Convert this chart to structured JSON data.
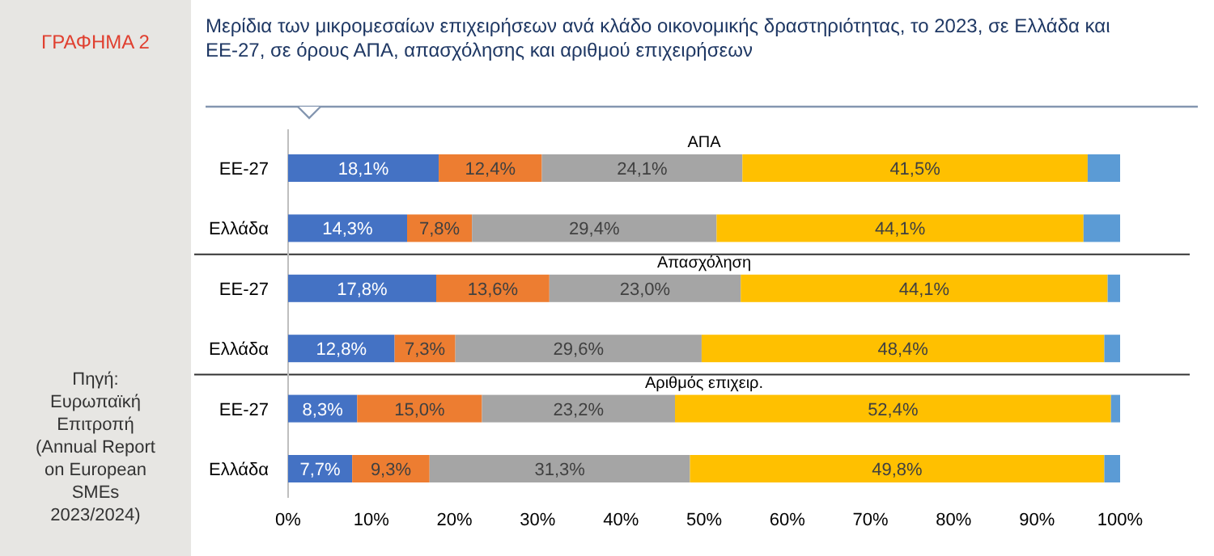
{
  "chart_data": {
    "type": "bar",
    "orientation": "horizontal",
    "stacked": true,
    "title": "Μερίδια των μικρομεσαίων επιχειρήσεων ανά κλάδο οικονομικής δραστηριότητας, το 2023, σε Ελλάδα και ΕΕ-27, σε όρους ΑΠΑ, απασχόλησης και αριθμού επιχειρήσεων",
    "annotations": [
      "ΑΠΑ",
      "Απασχόληση",
      "Αριθμός επιχειρ.",
      "ΓΡΑΦΗΜΑ 2",
      "Πηγή: Ευρωπαϊκή Επιτροπή (Annual Report on European SMEs 2023/2024)"
    ],
    "categories": [
      "ΕΕ-27",
      "Ελλάδα",
      "ΕΕ-27",
      "Ελλάδα",
      "ΕΕ-27",
      "Ελλάδα"
    ],
    "series": [
      {
        "color": "#4472c4",
        "values": [
          18.1,
          14.3,
          17.8,
          12.8,
          8.3,
          7.7
        ],
        "value_labels": [
          "18,1%",
          "14,3%",
          "17,8%",
          "12,8%",
          "8,3%",
          "7,7%"
        ]
      },
      {
        "color": "#ed7d31",
        "values": [
          12.4,
          7.8,
          13.6,
          7.3,
          15.0,
          9.3
        ],
        "value_labels": [
          "12,4%",
          "7,8%",
          "13,6%",
          "7,3%",
          "15,0%",
          "9,3%"
        ]
      },
      {
        "color": "#a5a5a5",
        "values": [
          24.1,
          29.4,
          23.0,
          29.6,
          23.2,
          31.3
        ],
        "value_labels": [
          "24,1%",
          "29,4%",
          "23,0%",
          "29,6%",
          "23,2%",
          "31,3%"
        ]
      },
      {
        "color": "#ffc000",
        "values": [
          41.5,
          44.1,
          44.1,
          48.4,
          52.4,
          49.8
        ],
        "value_labels": [
          "41,5%",
          "44,1%",
          "44,1%",
          "48,4%",
          "52,4%",
          "49,8%"
        ]
      },
      {
        "color": "#5b9bd5",
        "values": [
          3.9,
          4.4,
          1.5,
          1.9,
          1.1,
          1.9
        ]
      }
    ],
    "xlim": [
      0,
      100
    ],
    "xticks": [
      {
        "value": 0,
        "label": "0%"
      },
      {
        "value": 10,
        "label": "10%"
      },
      {
        "value": 20,
        "label": "20%"
      },
      {
        "value": 30,
        "label": "30%"
      },
      {
        "value": 40,
        "label": "40%"
      },
      {
        "value": 50,
        "label": "50%"
      },
      {
        "value": 60,
        "label": "60%"
      },
      {
        "value": 70,
        "label": "70%"
      },
      {
        "value": 80,
        "label": "80%"
      },
      {
        "value": 90,
        "label": "90%"
      },
      {
        "value": 100,
        "label": "100%"
      }
    ],
    "grid": false
  }
}
